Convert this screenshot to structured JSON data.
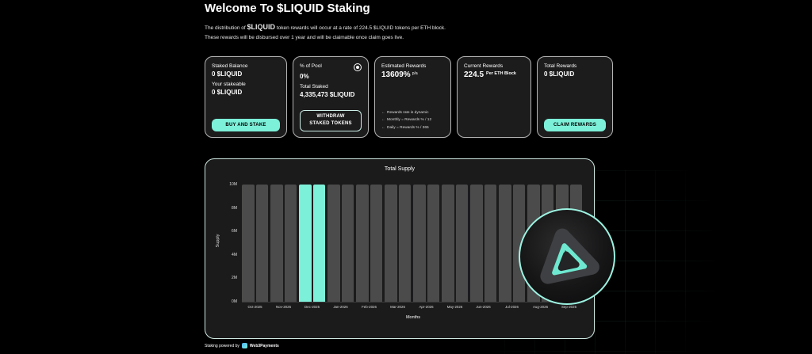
{
  "page": {
    "title": "Welcome To $LIQUID Staking",
    "subtitle_prefix": "The distribution of ",
    "subtitle_token": "$LIQUID",
    "subtitle_suffix": " token rewards will occur at a rate of 224.5 $LIQUID tokens per ETH block.",
    "subtitle_line2": "These rewards will be disbursed over 1 year and will be claimable once claim goes live."
  },
  "cards": {
    "staked_balance": {
      "label": "Staked Balance",
      "value": "0 $LIQUID",
      "stakeable_label": "Your stakeable",
      "stakeable_value": "0 $LIQUID",
      "button": "BUY AND STAKE"
    },
    "pool": {
      "label": "% of Pool",
      "value": "0%",
      "total_staked_label": "Total Staked",
      "total_staked_value": "4,335,473 $LIQUID",
      "button_line1": "WITHDRAW",
      "button_line2": "STAKED TOKENS"
    },
    "estimated_rewards": {
      "label": "Estimated Rewards",
      "value": "13609%",
      "unit": "p/a",
      "notes": [
        "Rewards rate is dynamic",
        "Monthly = Rewards % / 12",
        "Daily = Rewards % / 365"
      ]
    },
    "current_rewards": {
      "label": "Current Rewards",
      "value": "224.5",
      "unit": "Per ETH Block"
    },
    "total_rewards": {
      "label": "Total Rewards",
      "value": "0 $LIQUID",
      "button": "CLAIM REWARDS"
    }
  },
  "chart_data": {
    "type": "bar",
    "title": "Total Supply",
    "xlabel": "Months",
    "ylabel": "Supply",
    "categories": [
      "Oct-2025",
      "Nov-2025",
      "Dec-2025",
      "Jan-2026",
      "Feb-2026",
      "Mar-2026",
      "Apr-2026",
      "May-2026",
      "Jun-2026",
      "Jul-2026",
      "Aug-2026",
      "Sep-2026"
    ],
    "values": [
      10000000,
      10000000,
      10000000,
      10000000,
      10000000,
      10000000,
      10000000,
      10000000,
      10000000,
      10000000,
      10000000,
      10000000
    ],
    "highlighted_category": "Dec-2025",
    "ylim": [
      0,
      10000000
    ],
    "ytick_labels": [
      "0M",
      "2M",
      "4M",
      "6M",
      "8M",
      "10M"
    ],
    "grid": false,
    "legend": false,
    "bar_color": "#4b4b4b",
    "highlight_color": "#7df0d9"
  },
  "footer": {
    "powered_by": "Staking powered by",
    "brand": "Web3Payments"
  },
  "icons": {
    "note_arrow": "←"
  },
  "colors": {
    "accent": "#7df0d9",
    "background": "#000000",
    "card_bg": "#1c1c1d"
  }
}
